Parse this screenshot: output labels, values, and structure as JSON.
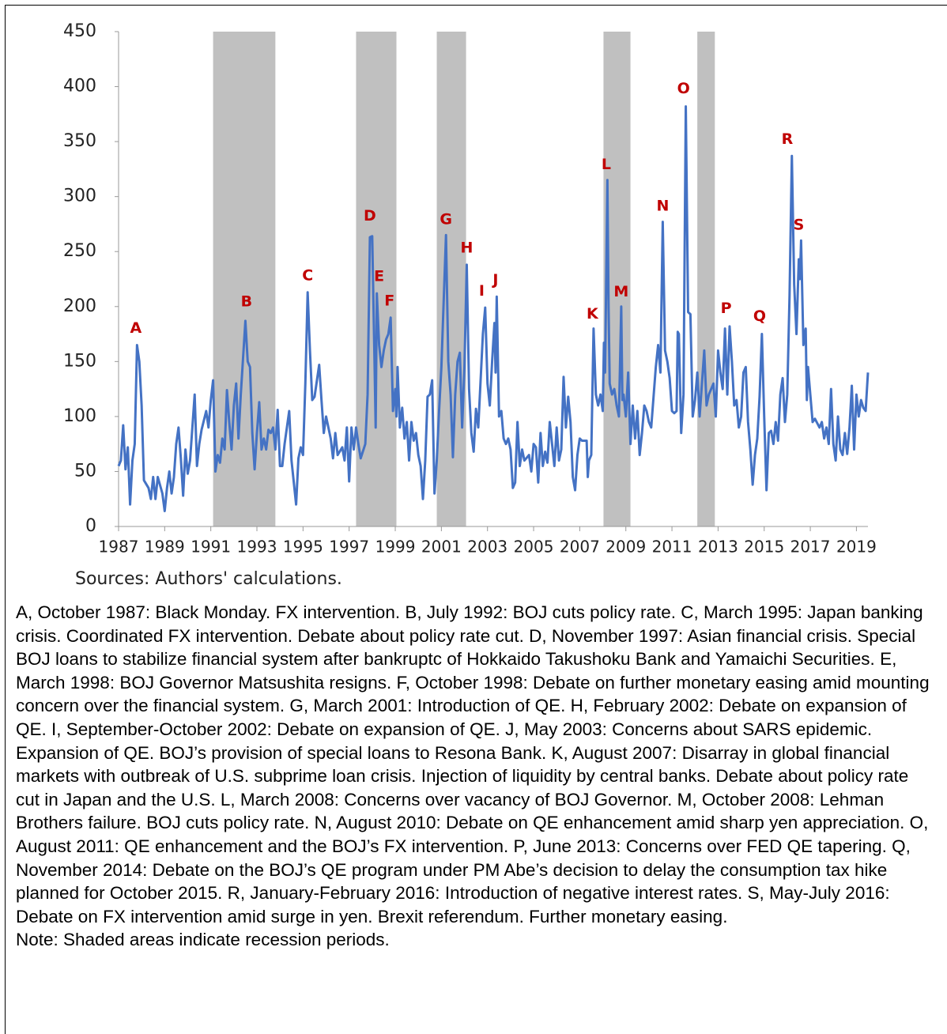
{
  "chart_data": {
    "type": "line",
    "color": "#4472c4",
    "shade_color": "#c0c0c0",
    "annotation_color": "#c00000",
    "xlim": [
      1987,
      2019.5
    ],
    "ylim": [
      0,
      450
    ],
    "xticks": [
      1987,
      1989,
      1991,
      1993,
      1995,
      1997,
      1999,
      2001,
      2003,
      2005,
      2007,
      2009,
      2011,
      2013,
      2015,
      2017,
      2019
    ],
    "yticks": [
      0,
      50,
      100,
      150,
      200,
      250,
      300,
      350,
      400,
      450
    ],
    "source": "Sources: Authors' calculations.",
    "shaded_periods": [
      [
        1991.1,
        1993.8
      ],
      [
        1997.3,
        1999.05
      ],
      [
        2000.8,
        2002.07
      ],
      [
        2008.03,
        2009.2
      ],
      [
        2012.1,
        2012.86
      ]
    ],
    "annotations": [
      {
        "label": "A",
        "x": 1987.75,
        "y": 180
      },
      {
        "label": "B",
        "x": 1992.55,
        "y": 204
      },
      {
        "label": "C",
        "x": 1995.2,
        "y": 228
      },
      {
        "label": "D",
        "x": 1997.9,
        "y": 282
      },
      {
        "label": "E",
        "x": 1998.3,
        "y": 227
      },
      {
        "label": "F",
        "x": 1998.75,
        "y": 205
      },
      {
        "label": "G",
        "x": 2001.2,
        "y": 279
      },
      {
        "label": "H",
        "x": 2002.1,
        "y": 253
      },
      {
        "label": "I",
        "x": 2002.75,
        "y": 214
      },
      {
        "label": "J",
        "x": 2003.35,
        "y": 224
      },
      {
        "label": "K",
        "x": 2007.55,
        "y": 193
      },
      {
        "label": "L",
        "x": 2008.15,
        "y": 329
      },
      {
        "label": "M",
        "x": 2008.8,
        "y": 213
      },
      {
        "label": "N",
        "x": 2010.6,
        "y": 291
      },
      {
        "label": "O",
        "x": 2011.5,
        "y": 398
      },
      {
        "label": "P",
        "x": 2013.35,
        "y": 198
      },
      {
        "label": "Q",
        "x": 2014.8,
        "y": 191
      },
      {
        "label": "R",
        "x": 2016.0,
        "y": 352
      },
      {
        "label": "S",
        "x": 2016.5,
        "y": 274
      }
    ],
    "x": [
      1987.0,
      1987.1,
      1987.2,
      1987.3,
      1987.4,
      1987.5,
      1987.6,
      1987.7,
      1987.8,
      1987.9,
      1988.0,
      1988.1,
      1988.3,
      1988.4,
      1988.5,
      1988.6,
      1988.7,
      1988.9,
      1989.0,
      1989.1,
      1989.2,
      1989.3,
      1989.4,
      1989.5,
      1989.6,
      1989.7,
      1989.8,
      1989.9,
      1990.0,
      1990.1,
      1990.2,
      1990.3,
      1990.4,
      1990.5,
      1990.6,
      1990.8,
      1990.9,
      1991.0,
      1991.1,
      1991.2,
      1991.3,
      1991.4,
      1991.5,
      1991.6,
      1991.7,
      1991.8,
      1991.9,
      1992.0,
      1992.1,
      1992.2,
      1992.3,
      1992.5,
      1992.6,
      1992.7,
      1992.8,
      1992.9,
      1993.0,
      1993.1,
      1993.2,
      1993.3,
      1993.4,
      1993.5,
      1993.6,
      1993.7,
      1993.8,
      1993.9,
      1994.0,
      1994.1,
      1994.2,
      1994.4,
      1994.5,
      1994.7,
      1994.8,
      1994.9,
      1995.0,
      1995.1,
      1995.2,
      1995.3,
      1995.4,
      1995.5,
      1995.7,
      1995.8,
      1995.9,
      1996.0,
      1996.2,
      1996.3,
      1996.4,
      1996.5,
      1996.7,
      1996.8,
      1996.9,
      1997.0,
      1997.1,
      1997.2,
      1997.3,
      1997.4,
      1997.5,
      1997.7,
      1997.8,
      1997.9,
      1998.0,
      1998.1,
      1998.15,
      1998.2,
      1998.3,
      1998.4,
      1998.5,
      1998.6,
      1998.7,
      1998.8,
      1998.9,
      1999.0,
      1999.05,
      1999.1,
      1999.2,
      1999.3,
      1999.4,
      1999.5,
      1999.6,
      1999.7,
      1999.8,
      1999.9,
      2000.0,
      2000.1,
      2000.2,
      2000.3,
      2000.4,
      2000.5,
      2000.6,
      2000.7,
      2000.8,
      2000.9,
      2001.0,
      2001.2,
      2001.3,
      2001.4,
      2001.5,
      2001.6,
      2001.7,
      2001.8,
      2001.9,
      2002.0,
      2002.1,
      2002.2,
      2002.3,
      2002.4,
      2002.5,
      2002.6,
      2002.8,
      2002.9,
      2003.0,
      2003.1,
      2003.2,
      2003.3,
      2003.35,
      2003.4,
      2003.5,
      2003.6,
      2003.7,
      2003.8,
      2003.9,
      2004.0,
      2004.1,
      2004.2,
      2004.3,
      2004.4,
      2004.5,
      2004.6,
      2004.8,
      2004.9,
      2005.0,
      2005.1,
      2005.2,
      2005.3,
      2005.4,
      2005.5,
      2005.6,
      2005.7,
      2005.8,
      2005.9,
      2006.0,
      2006.1,
      2006.2,
      2006.3,
      2006.4,
      2006.5,
      2006.6,
      2006.7,
      2006.8,
      2006.9,
      2007.0,
      2007.1,
      2007.3,
      2007.35,
      2007.4,
      2007.5,
      2007.6,
      2007.7,
      2007.8,
      2007.9,
      2008.0,
      2008.05,
      2008.1,
      2008.2,
      2008.25,
      2008.3,
      2008.4,
      2008.5,
      2008.6,
      2008.7,
      2008.8,
      2008.85,
      2008.9,
      2009.0,
      2009.1,
      2009.2,
      2009.3,
      2009.4,
      2009.5,
      2009.6,
      2009.7,
      2009.8,
      2009.9,
      2010.0,
      2010.1,
      2010.3,
      2010.4,
      2010.5,
      2010.6,
      2010.7,
      2010.8,
      2010.9,
      2011.0,
      2011.1,
      2011.2,
      2011.25,
      2011.3,
      2011.4,
      2011.5,
      2011.6,
      2011.7,
      2011.8,
      2011.9,
      2012.0,
      2012.1,
      2012.2,
      2012.3,
      2012.4,
      2012.5,
      2012.6,
      2012.8,
      2012.9,
      2013.0,
      2013.1,
      2013.2,
      2013.3,
      2013.4,
      2013.5,
      2013.6,
      2013.7,
      2013.8,
      2013.9,
      2014.0,
      2014.1,
      2014.2,
      2014.3,
      2014.4,
      2014.5,
      2014.6,
      2014.7,
      2014.8,
      2014.9,
      2015.0,
      2015.1,
      2015.2,
      2015.3,
      2015.4,
      2015.5,
      2015.6,
      2015.7,
      2015.8,
      2015.9,
      2016.0,
      2016.1,
      2016.2,
      2016.3,
      2016.4,
      2016.5,
      2016.55,
      2016.6,
      2016.7,
      2016.8,
      2016.85,
      2016.9,
      2017.0,
      2017.1,
      2017.2,
      2017.4,
      2017.5,
      2017.6,
      2017.7,
      2017.8,
      2017.9,
      2018.0,
      2018.1,
      2018.2,
      2018.3,
      2018.4,
      2018.5,
      2018.6,
      2018.7,
      2018.8,
      2018.9,
      2019.0,
      2019.1,
      2019.2,
      2019.3,
      2019.4,
      2019.5
    ],
    "values": [
      55,
      60,
      92,
      52,
      72,
      20,
      60,
      75,
      165,
      150,
      110,
      42,
      35,
      25,
      45,
      25,
      45,
      30,
      14,
      35,
      50,
      30,
      45,
      75,
      90,
      62,
      28,
      70,
      48,
      60,
      90,
      120,
      55,
      75,
      88,
      105,
      90,
      115,
      133,
      50,
      65,
      58,
      80,
      70,
      124,
      95,
      70,
      110,
      130,
      80,
      120,
      187,
      150,
      145,
      85,
      52,
      85,
      113,
      70,
      80,
      70,
      88,
      85,
      90,
      70,
      106,
      55,
      55,
      75,
      105,
      60,
      20,
      62,
      72,
      65,
      130,
      213,
      160,
      115,
      118,
      147,
      115,
      85,
      100,
      80,
      62,
      85,
      65,
      72,
      60,
      90,
      41,
      90,
      70,
      90,
      75,
      62,
      75,
      120,
      263,
      264,
      150,
      90,
      212,
      165,
      145,
      160,
      170,
      175,
      190,
      105,
      125,
      100,
      145,
      90,
      108,
      80,
      95,
      60,
      95,
      78,
      85,
      65,
      55,
      25,
      60,
      118,
      120,
      133,
      30,
      60,
      105,
      145,
      265,
      150,
      120,
      63,
      120,
      150,
      158,
      90,
      145,
      238,
      125,
      85,
      68,
      107,
      90,
      175,
      199,
      130,
      110,
      150,
      185,
      140,
      209,
      100,
      105,
      80,
      75,
      80,
      70,
      35,
      40,
      95,
      55,
      70,
      60,
      65,
      50,
      75,
      72,
      40,
      85,
      55,
      68,
      58,
      95,
      75,
      55,
      90,
      60,
      70,
      136,
      90,
      118,
      95,
      45,
      33,
      65,
      80,
      78,
      78,
      45,
      60,
      65,
      180,
      120,
      110,
      120,
      105,
      167,
      140,
      315,
      200,
      130,
      120,
      125,
      110,
      100,
      200,
      115,
      120,
      100,
      140,
      75,
      110,
      80,
      105,
      65,
      85,
      110,
      105,
      95,
      90,
      145,
      165,
      140,
      277,
      160,
      150,
      135,
      105,
      103,
      105,
      177,
      175,
      85,
      120,
      382,
      195,
      193,
      100,
      115,
      140,
      100,
      130,
      160,
      110,
      120,
      130,
      100,
      160,
      140,
      125,
      180,
      120,
      182,
      150,
      110,
      115,
      90,
      100,
      140,
      145,
      95,
      70,
      38,
      65,
      80,
      118,
      175,
      100,
      33,
      85,
      87,
      75,
      95,
      78,
      120,
      135,
      95,
      120,
      210,
      337,
      220,
      175,
      243,
      225,
      260,
      165,
      180,
      115,
      145,
      120,
      95,
      98,
      90,
      95,
      80,
      90,
      75,
      125,
      75,
      60,
      100,
      70,
      65,
      85,
      66,
      90,
      128,
      70,
      120,
      100,
      115,
      108,
      105,
      140
    ]
  },
  "notes": {
    "events": "A, October 1987: Black Monday. FX intervention. B, July 1992: BOJ cuts policy rate. C, March 1995: Japan banking crisis. Coordinated FX intervention. Debate about policy rate cut. D, November 1997: Asian financial crisis. Special BOJ loans to stabilize financial system after bankruptc of Hokkaido Takushoku Bank and Yamaichi Securities. E, March 1998: BOJ Governor Matsushita resigns. F, October 1998: Debate on further monetary easing amid mounting concern over the financial system. G, March 2001: Introduction of QE. H, February 2002: Debate on expansion of QE. I, September-October 2002: Debate on expansion of QE. J, May 2003: Concerns about SARS epidemic. Expansion of QE. BOJ’s provision of special loans to Resona Bank. K, August 2007: Disarray in global financial markets with outbreak of U.S. subprime loan crisis. Injection of liquidity by central banks. Debate about policy rate cut in Japan and the U.S. L, March 2008: Concerns over vacancy of BOJ Governor. M, October 2008: Lehman Brothers failure. BOJ cuts policy rate. N, August 2010: Debate on QE enhancement amid sharp yen appreciation. O, August 2011: QE enhancement and the BOJ’s FX intervention. P, June 2013: Concerns over FED QE tapering. Q, November 2014: Debate on the BOJ’s QE program under PM Abe’s decision to delay the consumption tax hike planned for October 2015. R, January-February 2016: Introduction of negative interest rates. S, May-July 2016: Debate on FX intervention amid surge in yen. Brexit referendum. Further monetary easing.",
    "shading": "Note: Shaded areas indicate recession periods."
  }
}
